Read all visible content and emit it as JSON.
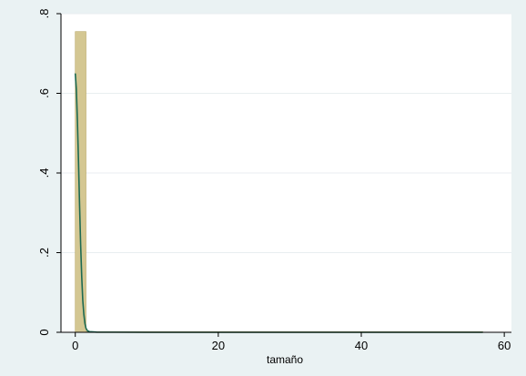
{
  "chart_data": {
    "type": "bar",
    "title": "",
    "xlabel": "tamaño",
    "ylabel": "",
    "xlim": [
      -2,
      61
    ],
    "ylim": [
      0,
      0.8
    ],
    "xticks": [
      0,
      20,
      40,
      60
    ],
    "yticks": [
      0,
      0.2,
      0.4,
      0.6,
      0.8
    ],
    "xtick_labels": [
      "0",
      "20",
      "40",
      "60"
    ],
    "ytick_labels": [
      "0",
      ".2",
      ".4",
      ".6",
      ".8"
    ],
    "grid": true,
    "bar_color": "#d4c792",
    "bar_edge_color": "#b8a765",
    "curve_color": "#1d6a52",
    "histogram": [
      {
        "x0": 0,
        "x1": 1.5,
        "density": 0.755
      },
      {
        "x0": 1.5,
        "x1": 57,
        "density": 0.0015
      }
    ],
    "density_curve": {
      "x": [
        0,
        0.15,
        0.3,
        0.45,
        0.6,
        0.75,
        0.9,
        1.05,
        1.2,
        1.35,
        1.5,
        1.7,
        2,
        3,
        10,
        57
      ],
      "y": [
        0.65,
        0.61,
        0.53,
        0.43,
        0.32,
        0.22,
        0.14,
        0.08,
        0.045,
        0.022,
        0.01,
        0.004,
        0.0015,
        0.0005,
        0,
        0
      ]
    }
  }
}
